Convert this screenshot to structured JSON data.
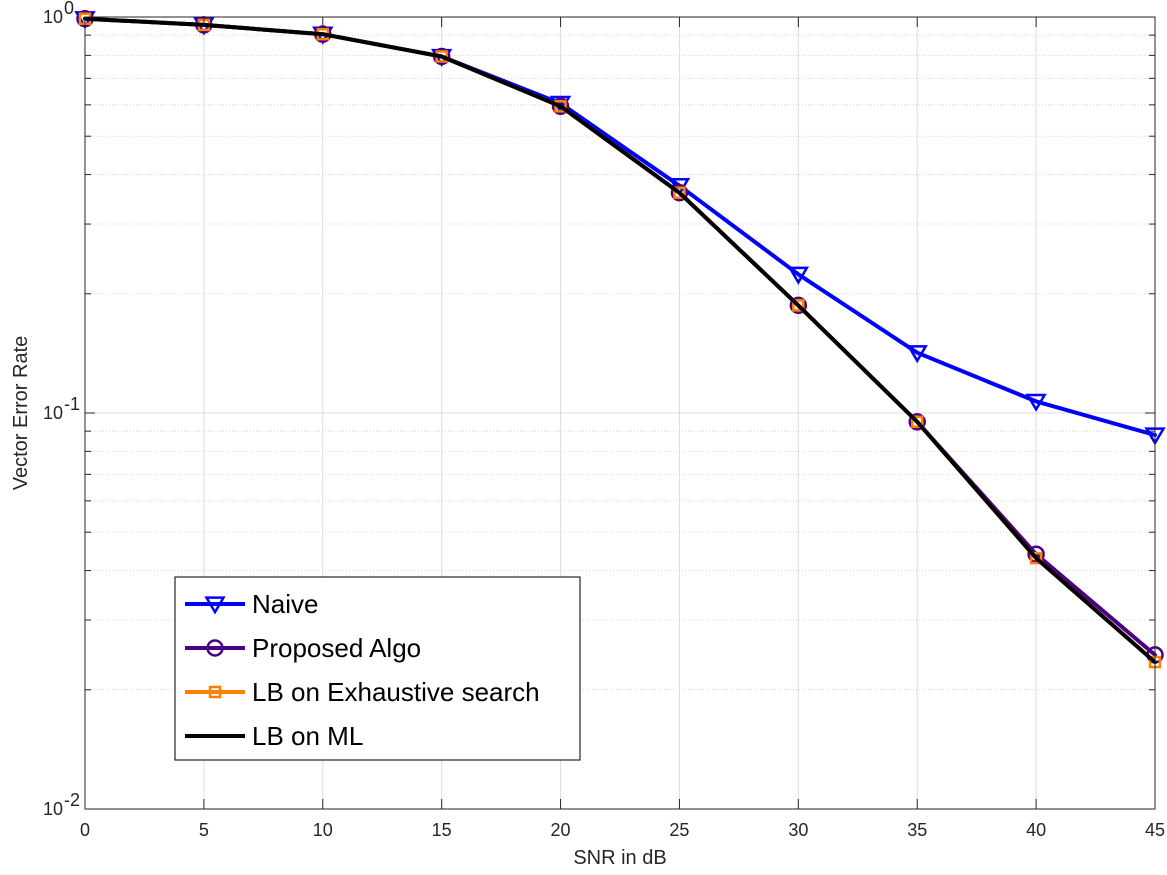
{
  "chart_data": {
    "type": "line",
    "title": "",
    "xlabel": "SNR in dB",
    "ylabel": "Vector Error Rate",
    "xlim": [
      0,
      45
    ],
    "ylim": [
      0.01,
      1
    ],
    "yscale": "log",
    "grid": true,
    "legend_position": "bottom-left",
    "x": [
      0,
      5,
      10,
      15,
      20,
      25,
      30,
      35,
      40,
      45
    ],
    "x_ticks": [
      "0",
      "5",
      "10",
      "15",
      "20",
      "25",
      "30",
      "35",
      "40",
      "45"
    ],
    "y_ticks": [
      {
        "value": 1,
        "base": "10",
        "exp": "0"
      },
      {
        "value": 0.1,
        "base": "10",
        "exp": "-1"
      },
      {
        "value": 0.01,
        "base": "10",
        "exp": "-2"
      }
    ],
    "series": [
      {
        "name": "Naive",
        "color": "#0000ff",
        "marker": "triangle-down",
        "values": [
          0.99,
          0.955,
          0.905,
          0.795,
          0.605,
          0.375,
          0.224,
          0.142,
          0.107,
          0.088
        ]
      },
      {
        "name": "Proposed Algo",
        "color": "#4b0082",
        "marker": "circle",
        "values": [
          0.99,
          0.955,
          0.905,
          0.795,
          0.595,
          0.36,
          0.187,
          0.095,
          0.044,
          0.0245
        ]
      },
      {
        "name": "LB on Exhaustive search",
        "color": "#ff8000",
        "marker": "square",
        "values": [
          0.99,
          0.955,
          0.905,
          0.795,
          0.595,
          0.36,
          0.187,
          0.095,
          0.043,
          0.0235
        ]
      },
      {
        "name": "LB on ML",
        "color": "#000000",
        "marker": "none",
        "values": [
          0.99,
          0.955,
          0.905,
          0.795,
          0.595,
          0.36,
          0.187,
          0.095,
          0.043,
          0.0235
        ]
      }
    ]
  }
}
